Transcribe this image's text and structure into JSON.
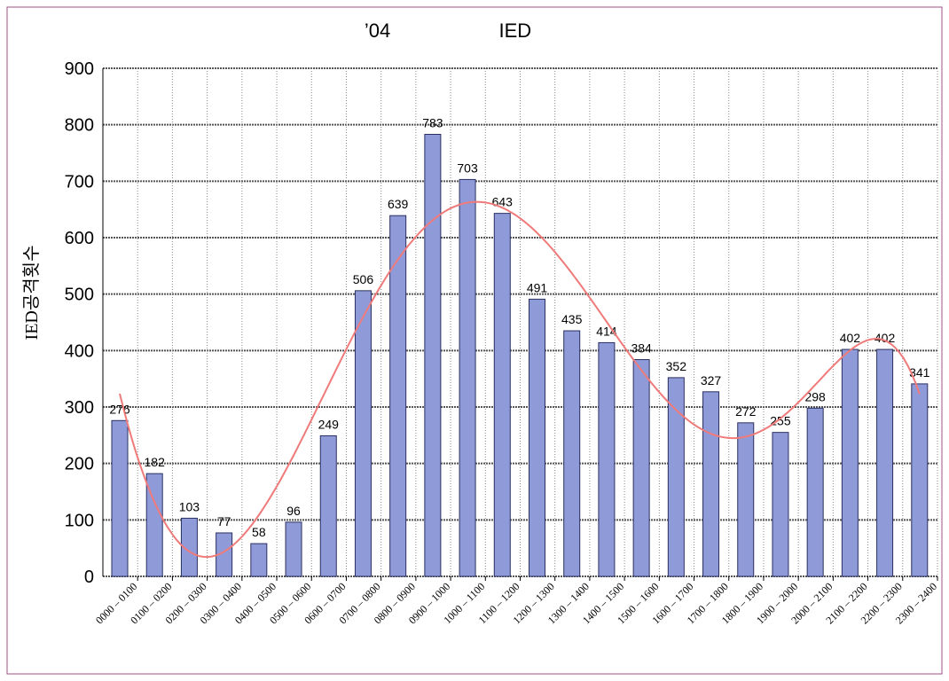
{
  "chart_data": {
    "type": "bar",
    "title": "’04                    IED",
    "y_label": "IED공격횟수",
    "categories": [
      "0000 – 0100",
      "0100 – 0200",
      "0200 – 0300",
      "0300 – 0400",
      "0400 – 0500",
      "0500 – 0600",
      "0600 – 0700",
      "0700 – 0800",
      "0800 – 0900",
      "0900 – 1000",
      "1000 – 1100",
      "1100 – 1200",
      "1200 – 1300",
      "1300 – 1400",
      "1400 – 1500",
      "1500 – 1600",
      "1600 – 1700",
      "1700 – 1800",
      "1800 – 1900",
      "1900 – 2000",
      "2000 – 2100",
      "2100 – 2200",
      "2200 – 2300",
      "2300 – 2400"
    ],
    "values": [
      276,
      182,
      103,
      77,
      58,
      96,
      249,
      506,
      639,
      783,
      703,
      643,
      491,
      435,
      414,
      384,
      352,
      327,
      272,
      255,
      298,
      402,
      402,
      341
    ],
    "color": "#8f9bd8",
    "edge_color": "#2a2f60",
    "ylim": [
      0,
      900
    ],
    "yticks": [
      0,
      100,
      200,
      300,
      400,
      500,
      600,
      700,
      800,
      900
    ],
    "grid": true,
    "trendline": {
      "type": "polynomial",
      "order": 6,
      "color": "#f07a7a"
    }
  }
}
